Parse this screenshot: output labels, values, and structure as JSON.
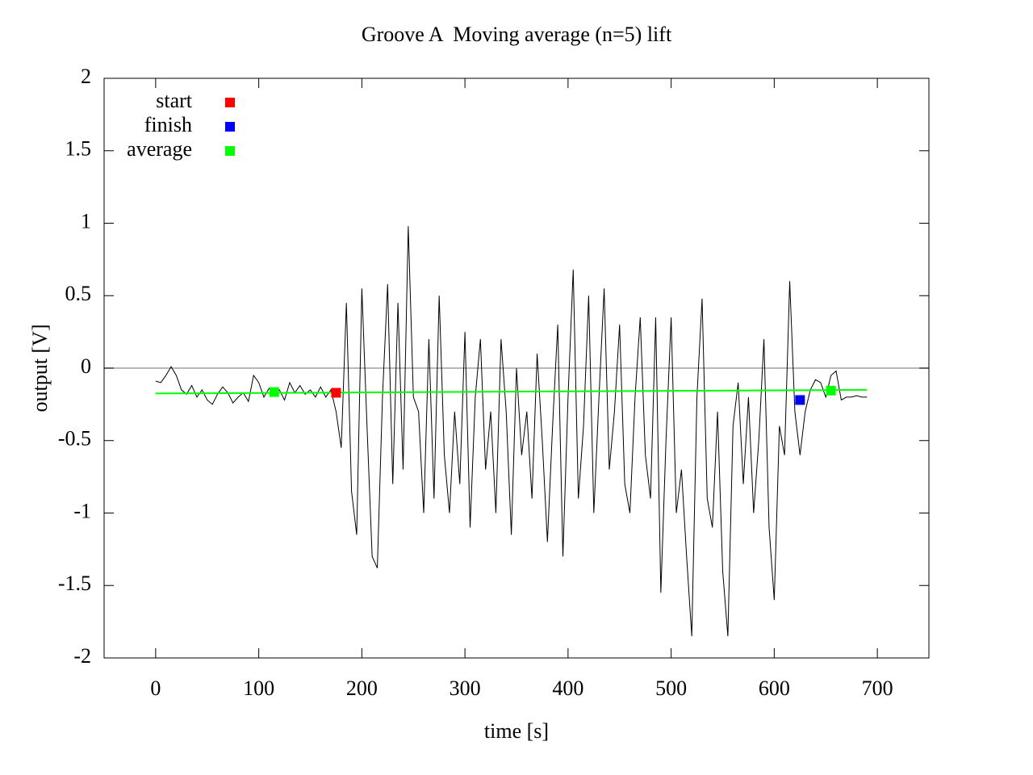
{
  "chart_data": {
    "type": "line",
    "title": "Groove A  Moving average (n=5) lift",
    "x_label": "time [s]",
    "y_label": "output [V]",
    "xlim": [
      -50,
      750
    ],
    "xticks": [
      0,
      100,
      200,
      300,
      400,
      500,
      600,
      700
    ],
    "ylim": [
      -2,
      2
    ],
    "yticks": [
      -2,
      -1.5,
      -1,
      -0.5,
      0,
      0.5,
      1,
      1.5,
      2
    ],
    "zero_axis": true,
    "legend": "top-left",
    "series": [
      {
        "color": "#000000",
        "style": "line",
        "x": [
          0,
          5,
          10,
          15,
          20,
          25,
          30,
          35,
          40,
          45,
          50,
          55,
          60,
          65,
          70,
          75,
          80,
          85,
          90,
          95,
          100,
          105,
          110,
          115,
          120,
          125,
          130,
          135,
          140,
          145,
          150,
          155,
          160,
          165,
          170,
          175,
          180,
          185,
          190,
          195,
          200,
          205,
          210,
          215,
          220,
          225,
          230,
          235,
          240,
          245,
          250,
          255,
          260,
          265,
          270,
          275,
          280,
          285,
          290,
          295,
          300,
          305,
          310,
          315,
          320,
          325,
          330,
          335,
          340,
          345,
          350,
          355,
          360,
          365,
          370,
          375,
          380,
          385,
          390,
          395,
          400,
          405,
          410,
          415,
          420,
          425,
          430,
          435,
          440,
          445,
          450,
          455,
          460,
          465,
          470,
          475,
          480,
          485,
          490,
          495,
          500,
          505,
          510,
          515,
          520,
          525,
          530,
          535,
          540,
          545,
          550,
          555,
          560,
          565,
          570,
          575,
          580,
          585,
          590,
          595,
          600,
          605,
          610,
          615,
          620,
          625,
          630,
          635,
          640,
          645,
          650,
          655,
          660,
          665,
          670,
          675,
          680,
          685,
          690
        ],
        "values": [
          -0.09,
          -0.1,
          -0.05,
          0.01,
          -0.05,
          -0.15,
          -0.18,
          -0.12,
          -0.2,
          -0.15,
          -0.22,
          -0.25,
          -0.18,
          -0.13,
          -0.17,
          -0.24,
          -0.2,
          -0.17,
          -0.23,
          -0.05,
          -0.1,
          -0.2,
          -0.14,
          -0.18,
          -0.15,
          -0.22,
          -0.1,
          -0.17,
          -0.12,
          -0.18,
          -0.15,
          -0.2,
          -0.13,
          -0.2,
          -0.15,
          -0.3,
          -0.55,
          0.45,
          -0.85,
          -1.15,
          0.55,
          -0.4,
          -1.3,
          -1.38,
          -0.2,
          0.58,
          -0.8,
          0.45,
          -0.7,
          0.98,
          -0.2,
          -0.3,
          -1.0,
          0.2,
          -0.9,
          0.5,
          -0.6,
          -1.0,
          -0.3,
          -0.8,
          0.25,
          -1.1,
          -0.2,
          0.2,
          -0.7,
          -0.3,
          -1.0,
          0.2,
          -0.3,
          -1.15,
          0.0,
          -0.6,
          -0.3,
          -0.9,
          0.1,
          -0.5,
          -1.2,
          -0.4,
          0.3,
          -1.3,
          -0.2,
          0.68,
          -0.9,
          -0.4,
          0.5,
          -1.0,
          -0.2,
          0.55,
          -0.7,
          -0.3,
          0.3,
          -0.8,
          -1.0,
          -0.2,
          0.35,
          -0.6,
          -0.9,
          0.35,
          -1.55,
          -0.5,
          0.35,
          -1.0,
          -0.7,
          -1.3,
          -1.85,
          -0.2,
          0.48,
          -0.9,
          -1.1,
          -0.3,
          -1.4,
          -1.85,
          -0.4,
          -0.1,
          -0.8,
          -0.2,
          -1.0,
          -0.5,
          0.2,
          -1.1,
          -1.6,
          -0.4,
          -0.6,
          0.6,
          -0.3,
          -0.6,
          -0.3,
          -0.15,
          -0.08,
          -0.1,
          -0.2,
          -0.05,
          -0.02,
          -0.22,
          -0.2,
          -0.2,
          -0.19,
          -0.2,
          -0.2
        ]
      },
      {
        "color": "#00ff00",
        "style": "line",
        "x": [
          0,
          690
        ],
        "values": [
          -0.175,
          -0.15
        ]
      },
      {
        "name": "start",
        "color": "#ff0000",
        "style": "points",
        "x": [
          175
        ],
        "values": [
          -0.17
        ]
      },
      {
        "name": "finish",
        "color": "#0000ff",
        "style": "points",
        "x": [
          625
        ],
        "values": [
          -0.22
        ]
      },
      {
        "name": "average",
        "color": "#00ff00",
        "style": "points",
        "x": [
          115,
          655
        ],
        "values": [
          -0.165,
          -0.155
        ]
      }
    ]
  }
}
